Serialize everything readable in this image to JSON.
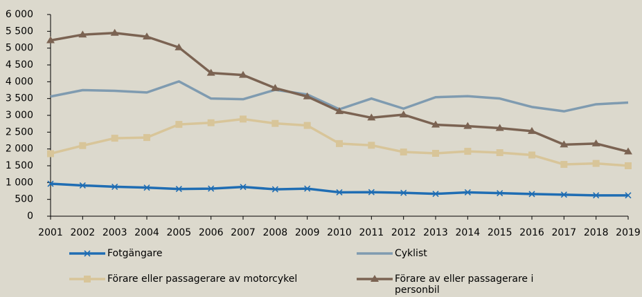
{
  "chart_data": {
    "type": "line",
    "categories": [
      "2001",
      "2002",
      "2003",
      "2004",
      "2005",
      "2006",
      "2007",
      "2008",
      "2009",
      "2010",
      "2011",
      "2012",
      "2013",
      "2014",
      "2015",
      "2016",
      "2017",
      "2018",
      "2019"
    ],
    "series": [
      {
        "name": "Fotgängare",
        "color": "#1f6db3",
        "marker": "x",
        "values": [
          965,
          915,
          875,
          850,
          810,
          820,
          870,
          800,
          820,
          710,
          715,
          695,
          665,
          710,
          685,
          660,
          640,
          620,
          620
        ]
      },
      {
        "name": "Cyklist",
        "color": "#7f9bb0",
        "marker": "none",
        "values": [
          3560,
          3750,
          3730,
          3680,
          4010,
          3500,
          3480,
          3760,
          3620,
          3180,
          3500,
          3200,
          3540,
          3570,
          3500,
          3250,
          3120,
          3330,
          3380
        ]
      },
      {
        "name": "Förare eller passagerare av motorcykel",
        "color": "#d8c599",
        "marker": "square",
        "values": [
          1860,
          2100,
          2320,
          2340,
          2730,
          2780,
          2890,
          2760,
          2700,
          2160,
          2110,
          1910,
          1870,
          1930,
          1890,
          1820,
          1540,
          1570,
          1500
        ]
      },
      {
        "name": "Förare av eller passagerare i personbil",
        "color": "#7b6352",
        "marker": "triangle",
        "values": [
          5230,
          5400,
          5450,
          5340,
          5020,
          4260,
          4200,
          3810,
          3560,
          3120,
          2930,
          3020,
          2720,
          2680,
          2620,
          2530,
          2130,
          2160,
          1920
        ]
      }
    ],
    "ylim": [
      0,
      6000
    ],
    "yticks": [
      0,
      500,
      {
        "value": 1000,
        "label": "1 000"
      },
      {
        "value": 1500,
        "label": "1 500"
      },
      {
        "value": 2000,
        "label": "2 000"
      },
      {
        "value": 2500,
        "label": "2 500"
      },
      {
        "value": 3000,
        "label": "3 000"
      },
      {
        "value": 3500,
        "label": "3 500"
      },
      {
        "value": 4000,
        "label": "4 000"
      },
      {
        "value": 4500,
        "label": "4 500"
      },
      {
        "value": 5000,
        "label": "5 000"
      },
      {
        "value": 5500,
        "label": "5 500"
      },
      {
        "value": 6000,
        "label": "6 000"
      }
    ],
    "grid": false
  }
}
